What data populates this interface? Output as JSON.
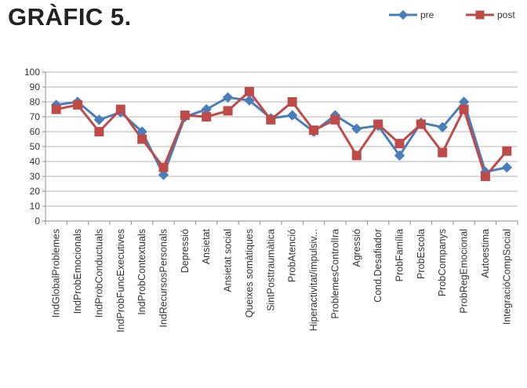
{
  "chart_data": {
    "type": "line",
    "title": "GRÀFIC 5.",
    "xlabel": "",
    "ylabel": "",
    "ylim": [
      0,
      100
    ],
    "yticks": [
      0,
      10,
      20,
      30,
      40,
      50,
      60,
      70,
      80,
      90,
      100
    ],
    "grid": true,
    "legend_position": "top-right",
    "categories": [
      "IndGlobalProblemes",
      "IndProbEmocionals",
      "IndProbConductuals",
      "IndProbFuncExecutives",
      "IndProbContextuals",
      "IndRecursosPersonals",
      "Depressió",
      "Ansietat",
      "Ansietat social",
      "Queixes somàtiques",
      "SintPosttraumàtica",
      "ProbAtenció",
      "Hiperactivitat/impulsiv...",
      "ProblemesControlIra",
      "Agressió",
      "Cond.Desafiador",
      "ProbFamília",
      "ProbEscola",
      "ProbCompanys",
      "ProbRegEmocional",
      "Autoestima",
      "IntegracióCompSocial"
    ],
    "series": [
      {
        "name": "pre",
        "color": "#4A7EBB",
        "marker": "diamond",
        "values": [
          78,
          80,
          68,
          73,
          60,
          31,
          70,
          75,
          83,
          81,
          69,
          71,
          60,
          71,
          62,
          64,
          44,
          66,
          63,
          80,
          33,
          36
        ]
      },
      {
        "name": "post",
        "color": "#BE4B48",
        "marker": "square",
        "values": [
          75,
          78,
          60,
          75,
          55,
          36,
          71,
          70,
          74,
          87,
          68,
          80,
          61,
          68,
          44,
          65,
          52,
          65,
          46,
          75,
          30,
          47
        ]
      }
    ]
  }
}
